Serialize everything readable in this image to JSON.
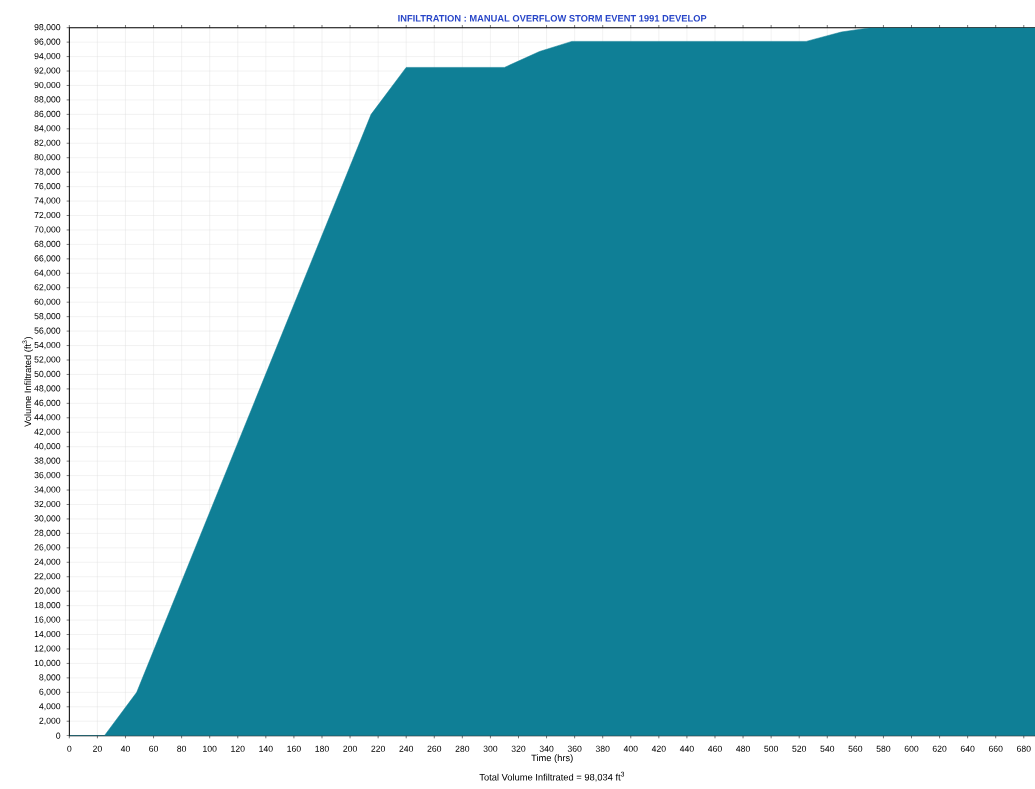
{
  "chart_data": {
    "type": "area",
    "title": "INFILTRATION : MANUAL OVERFLOW STORM EVENT 1991 DEVELOP",
    "xlabel": "Time (hrs)",
    "ylabel": "Volume Infiltrated (ft$^{3}$)",
    "annotations": [
      "Total Volume Infiltrated = 98,034 ft$^{3}$"
    ],
    "x": [
      0,
      25,
      48,
      215,
      240,
      310,
      335,
      358,
      525,
      550,
      571,
      688
    ],
    "series": [
      {
        "color": "#0f7f96",
        "values": [
          0,
          0,
          6000,
          86000,
          92500,
          92500,
          94700,
          96100,
          96100,
          97400,
          98000,
          98000
        ]
      }
    ],
    "xlim": [
      0,
      688
    ],
    "ylim": [
      0,
      98000
    ],
    "xticks": [
      0,
      20,
      40,
      60,
      80,
      100,
      120,
      140,
      160,
      180,
      200,
      220,
      240,
      260,
      280,
      300,
      320,
      340,
      360,
      380,
      400,
      420,
      440,
      460,
      480,
      500,
      520,
      540,
      560,
      580,
      600,
      620,
      640,
      660,
      680
    ],
    "yticks": [
      0,
      {
        "value": 2000,
        "label": "2,000"
      },
      {
        "value": 4000,
        "label": "4,000"
      },
      {
        "value": 6000,
        "label": "6,000"
      },
      {
        "value": 8000,
        "label": "8,000"
      },
      {
        "value": 10000,
        "label": "10,000"
      },
      {
        "value": 12000,
        "label": "12,000"
      },
      {
        "value": 14000,
        "label": "14,000"
      },
      {
        "value": 16000,
        "label": "16,000"
      },
      {
        "value": 18000,
        "label": "18,000"
      },
      {
        "value": 20000,
        "label": "20,000"
      },
      {
        "value": 22000,
        "label": "22,000"
      },
      {
        "value": 24000,
        "label": "24,000"
      },
      {
        "value": 26000,
        "label": "26,000"
      },
      {
        "value": 28000,
        "label": "28,000"
      },
      {
        "value": 30000,
        "label": "30,000"
      },
      {
        "value": 32000,
        "label": "32,000"
      },
      {
        "value": 34000,
        "label": "34,000"
      },
      {
        "value": 36000,
        "label": "36,000"
      },
      {
        "value": 38000,
        "label": "38,000"
      },
      {
        "value": 40000,
        "label": "40,000"
      },
      {
        "value": 42000,
        "label": "42,000"
      },
      {
        "value": 44000,
        "label": "44,000"
      },
      {
        "value": 46000,
        "label": "46,000"
      },
      {
        "value": 48000,
        "label": "48,000"
      },
      {
        "value": 50000,
        "label": "50,000"
      },
      {
        "value": 52000,
        "label": "52,000"
      },
      {
        "value": 54000,
        "label": "54,000"
      },
      {
        "value": 56000,
        "label": "56,000"
      },
      {
        "value": 58000,
        "label": "58,000"
      },
      {
        "value": 60000,
        "label": "60,000"
      },
      {
        "value": 62000,
        "label": "62,000"
      },
      {
        "value": 64000,
        "label": "64,000"
      },
      {
        "value": 66000,
        "label": "66,000"
      },
      {
        "value": 68000,
        "label": "68,000"
      },
      {
        "value": 70000,
        "label": "70,000"
      },
      {
        "value": 72000,
        "label": "72,000"
      },
      {
        "value": 74000,
        "label": "74,000"
      },
      {
        "value": 76000,
        "label": "76,000"
      },
      {
        "value": 78000,
        "label": "78,000"
      },
      {
        "value": 80000,
        "label": "80,000"
      },
      {
        "value": 82000,
        "label": "82,000"
      },
      {
        "value": 84000,
        "label": "84,000"
      },
      {
        "value": 86000,
        "label": "86,000"
      },
      {
        "value": 88000,
        "label": "88,000"
      },
      {
        "value": 90000,
        "label": "90,000"
      },
      {
        "value": 92000,
        "label": "92,000"
      },
      {
        "value": 94000,
        "label": "94,000"
      },
      {
        "value": 96000,
        "label": "96,000"
      },
      {
        "value": 98000,
        "label": "98,000"
      }
    ],
    "grid": true,
    "marker": "none"
  }
}
